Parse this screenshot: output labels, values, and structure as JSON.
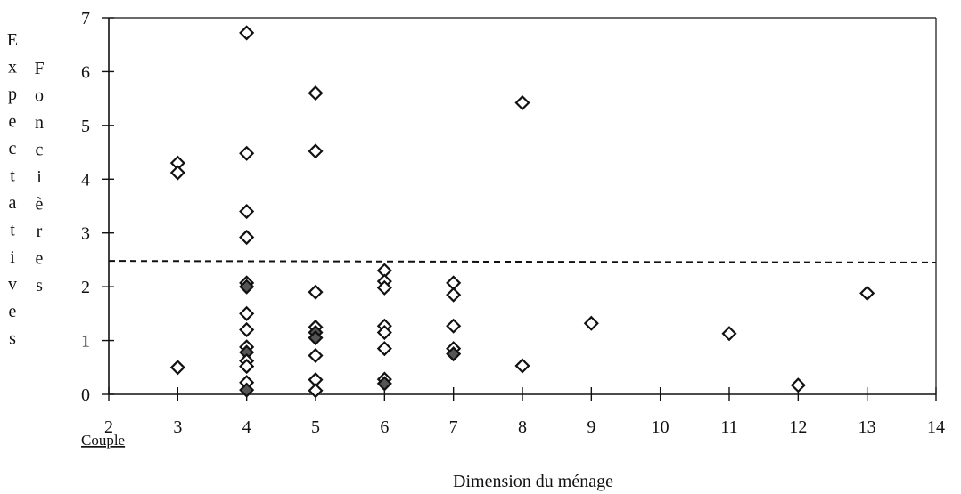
{
  "chart_data": {
    "type": "scatter",
    "xlabel": "Dimension du ménage",
    "ylabel_columns": [
      [
        "E",
        "x",
        "p",
        "e",
        "c",
        "t",
        "a",
        "t",
        "i",
        "v",
        "e",
        "s"
      ],
      [
        "F",
        "o",
        "n",
        "c",
        "i",
        "è",
        "r",
        "e",
        "s"
      ]
    ],
    "x_annotation": "Couple",
    "xlim": [
      2,
      14
    ],
    "ylim": [
      0,
      7
    ],
    "xticks": [
      "2",
      "3",
      "4",
      "5",
      "6",
      "7",
      "8",
      "9",
      "10",
      "11",
      "12",
      "13",
      "14"
    ],
    "yticks": [
      "0",
      "1",
      "2",
      "3",
      "4",
      "5",
      "6",
      "7"
    ],
    "grid": false,
    "legend": "none",
    "reference_line": {
      "style": "dashed",
      "y_start": 2.48,
      "y_end": 2.45
    },
    "marker": {
      "shape": "diamond",
      "stroke": "#111111",
      "fill": "#ffffff",
      "dark_fill": "#555555"
    },
    "points": [
      {
        "x": 3,
        "y": 4.3
      },
      {
        "x": 3,
        "y": 4.12
      },
      {
        "x": 3,
        "y": 0.5
      },
      {
        "x": 4,
        "y": 6.72
      },
      {
        "x": 4,
        "y": 4.48
      },
      {
        "x": 4,
        "y": 3.4
      },
      {
        "x": 4,
        "y": 2.92
      },
      {
        "x": 4,
        "y": 2.07
      },
      {
        "x": 4,
        "y": 2.0,
        "dark": true
      },
      {
        "x": 4,
        "y": 1.5
      },
      {
        "x": 4,
        "y": 1.2
      },
      {
        "x": 4,
        "y": 0.88
      },
      {
        "x": 4,
        "y": 0.78,
        "dark": true
      },
      {
        "x": 4,
        "y": 0.62
      },
      {
        "x": 4,
        "y": 0.52
      },
      {
        "x": 4,
        "y": 0.22
      },
      {
        "x": 4,
        "y": 0.08,
        "dark": true
      },
      {
        "x": 5,
        "y": 5.6
      },
      {
        "x": 5,
        "y": 4.52
      },
      {
        "x": 5,
        "y": 1.9
      },
      {
        "x": 5,
        "y": 1.25
      },
      {
        "x": 5,
        "y": 1.15,
        "dark": true
      },
      {
        "x": 5,
        "y": 1.05,
        "dark": true
      },
      {
        "x": 5,
        "y": 0.72
      },
      {
        "x": 5,
        "y": 0.27
      },
      {
        "x": 5,
        "y": 0.07
      },
      {
        "x": 6,
        "y": 2.3
      },
      {
        "x": 6,
        "y": 2.1
      },
      {
        "x": 6,
        "y": 1.98
      },
      {
        "x": 6,
        "y": 1.27
      },
      {
        "x": 6,
        "y": 1.15
      },
      {
        "x": 6,
        "y": 0.85
      },
      {
        "x": 6,
        "y": 0.28
      },
      {
        "x": 6,
        "y": 0.2,
        "dark": true
      },
      {
        "x": 7,
        "y": 2.07
      },
      {
        "x": 7,
        "y": 1.85
      },
      {
        "x": 7,
        "y": 1.27
      },
      {
        "x": 7,
        "y": 0.85
      },
      {
        "x": 7,
        "y": 0.75,
        "dark": true
      },
      {
        "x": 8,
        "y": 5.42
      },
      {
        "x": 8,
        "y": 0.53
      },
      {
        "x": 9,
        "y": 1.32
      },
      {
        "x": 11,
        "y": 1.13
      },
      {
        "x": 12,
        "y": 0.17
      },
      {
        "x": 13,
        "y": 1.88
      }
    ]
  }
}
